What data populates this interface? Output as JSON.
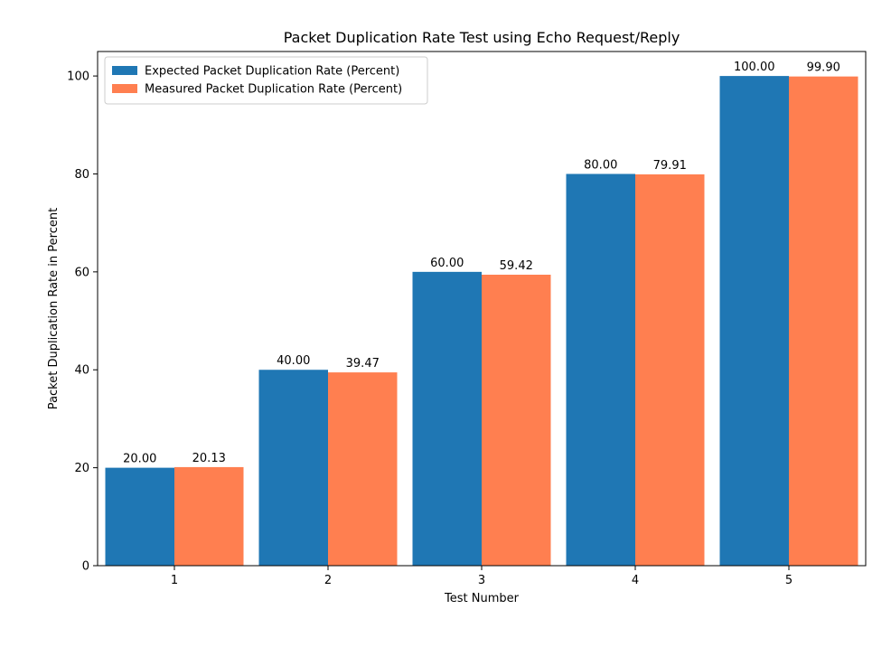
{
  "chart_data": {
    "type": "bar",
    "title": "Packet Duplication Rate Test using Echo Request/Reply",
    "xlabel": "Test Number",
    "ylabel": "Packet Duplication Rate in Percent",
    "categories": [
      "1",
      "2",
      "3",
      "4",
      "5"
    ],
    "ylim": [
      0,
      105
    ],
    "yticks": [
      0,
      20,
      40,
      60,
      80,
      100
    ],
    "grid": false,
    "legend_position": "top-left",
    "series": [
      {
        "name": "Expected Packet Duplication Rate (Percent)",
        "color": "#1f77b4",
        "values": [
          20.0,
          40.0,
          60.0,
          80.0,
          100.0
        ],
        "labels": [
          "20.00",
          "40.00",
          "60.00",
          "80.00",
          "100.00"
        ]
      },
      {
        "name": "Measured Packet Duplication Rate (Percent)",
        "color": "#ff7f50",
        "values": [
          20.13,
          39.47,
          59.42,
          79.91,
          99.9
        ],
        "labels": [
          "20.13",
          "39.47",
          "59.42",
          "79.91",
          "99.90"
        ]
      }
    ]
  }
}
